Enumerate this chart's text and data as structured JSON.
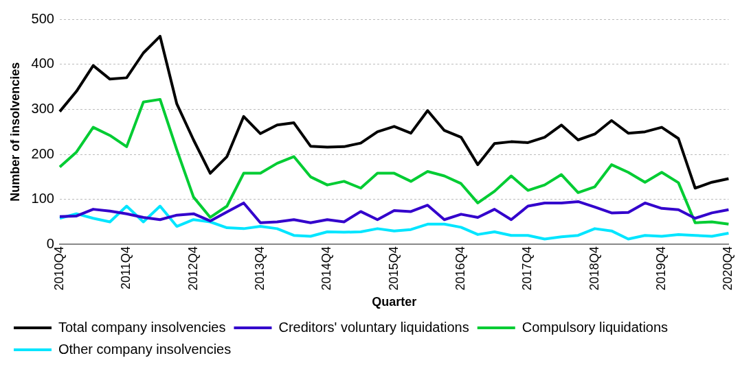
{
  "chart_data": {
    "type": "line",
    "xlabel": "Quarter",
    "ylabel": "Number of insolvencies",
    "categories": [
      "2010Q4",
      null,
      null,
      null,
      "2011Q4",
      null,
      null,
      null,
      "2012Q4",
      null,
      null,
      null,
      "2013Q4",
      null,
      null,
      null,
      "2014Q4",
      null,
      null,
      null,
      "2015Q4",
      null,
      null,
      null,
      "2016Q4",
      null,
      null,
      null,
      "2017Q4",
      null,
      null,
      null,
      "2018Q4",
      null,
      null,
      null,
      "2019Q4",
      null,
      null,
      null,
      "2020Q4"
    ],
    "series": [
      {
        "name": "Total company insolvencies",
        "color": "#000000",
        "values": [
          295,
          340,
          397,
          367,
          370,
          425,
          462,
          312,
          232,
          158,
          195,
          284,
          246,
          265,
          270,
          218,
          216,
          217,
          225,
          250,
          262,
          247,
          297,
          253,
          238,
          177,
          224,
          228,
          226,
          238,
          265,
          232,
          245,
          275,
          247,
          250,
          260,
          235,
          125,
          138,
          146
        ]
      },
      {
        "name": "Creditors' voluntary liquidations",
        "color": "#3300cc",
        "values": [
          62,
          63,
          78,
          74,
          68,
          60,
          55,
          65,
          68,
          52,
          72,
          92,
          48,
          50,
          55,
          48,
          55,
          50,
          73,
          55,
          75,
          73,
          87,
          55,
          67,
          60,
          78,
          55,
          85,
          92,
          92,
          95,
          83,
          70,
          71,
          92,
          80,
          77,
          58,
          70,
          77
        ]
      },
      {
        "name": "Compulsory liquidations",
        "color": "#00cc33",
        "values": [
          172,
          205,
          260,
          242,
          217,
          316,
          322,
          210,
          105,
          60,
          85,
          158,
          158,
          180,
          195,
          150,
          132,
          140,
          125,
          158,
          158,
          140,
          162,
          152,
          135,
          92,
          118,
          152,
          120,
          132,
          155,
          115,
          128,
          177,
          160,
          138,
          160,
          137,
          48,
          50,
          45
        ]
      },
      {
        "name": "Other company insolvencies",
        "color": "#00e5ff",
        "values": [
          58,
          68,
          58,
          50,
          85,
          50,
          85,
          40,
          55,
          50,
          37,
          35,
          40,
          35,
          20,
          18,
          28,
          27,
          28,
          35,
          30,
          33,
          45,
          45,
          38,
          22,
          28,
          20,
          20,
          12,
          17,
          20,
          35,
          30,
          12,
          20,
          18,
          22,
          20,
          18,
          25
        ]
      }
    ],
    "ylim": [
      0,
      500
    ],
    "yticks": [
      0,
      100,
      200,
      300,
      400,
      500
    ],
    "grid": "y",
    "legend": "bottom",
    "marker": "none",
    "line_style": "solid"
  }
}
